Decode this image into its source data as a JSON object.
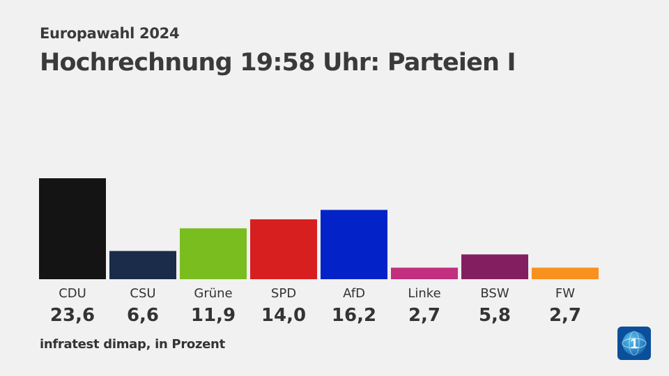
{
  "header": {
    "supertitle": "Europawahl 2024",
    "title": "Hochrechnung 19:58 Uhr: Parteien I"
  },
  "footer": {
    "source": "infratest dimap, in Prozent"
  },
  "logo": {
    "icon": "ard-tagesschau-logo-icon",
    "text": "1"
  },
  "chart_data": {
    "type": "bar",
    "categories": [
      "CDU",
      "CSU",
      "Grüne",
      "SPD",
      "AfD",
      "Linke",
      "BSW",
      "FW"
    ],
    "values": [
      23.6,
      6.6,
      11.9,
      14.0,
      16.2,
      2.7,
      5.8,
      2.7
    ],
    "value_labels": [
      "23,6",
      "6,6",
      "11,9",
      "14,0",
      "16,2",
      "2,7",
      "5,8",
      "2,7"
    ],
    "colors": [
      "#141414",
      "#1b2c4a",
      "#7abd1f",
      "#d71f20",
      "#0323c8",
      "#c12f7e",
      "#831f61",
      "#f8911e"
    ],
    "ylim": [
      0,
      23.6
    ],
    "grid": false,
    "legend": "none"
  }
}
